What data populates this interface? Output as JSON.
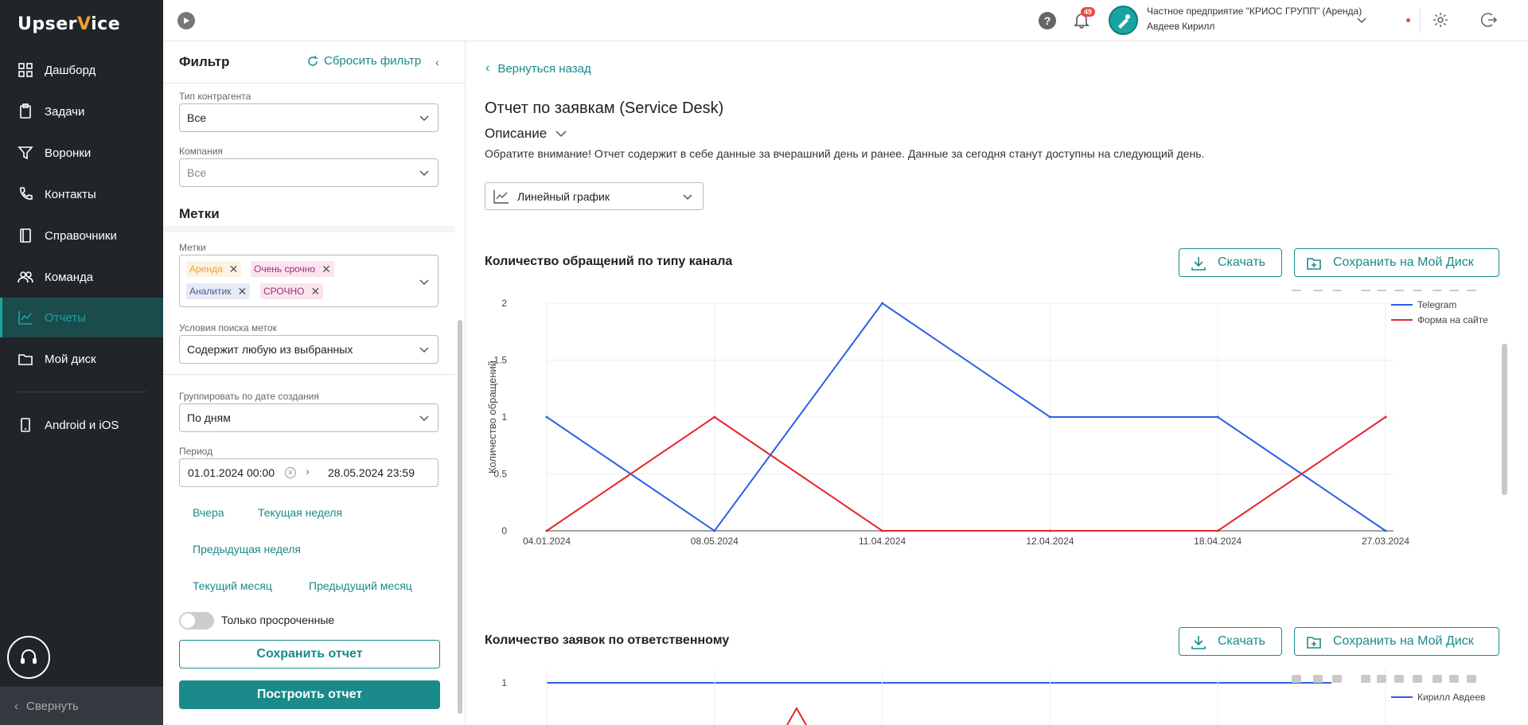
{
  "app": {
    "logo_left": "Upser",
    "logo_accent": "V",
    "logo_right": "ice"
  },
  "sidebar": {
    "items": [
      {
        "label": "Дашборд",
        "icon": "grid-icon"
      },
      {
        "label": "Задачи",
        "icon": "clipboard-icon"
      },
      {
        "label": "Воронки",
        "icon": "funnel-icon"
      },
      {
        "label": "Контакты",
        "icon": "phone-icon"
      },
      {
        "label": "Справочники",
        "icon": "book-icon"
      },
      {
        "label": "Команда",
        "icon": "team-icon"
      },
      {
        "label": "Отчеты",
        "icon": "chart-icon",
        "active": true
      },
      {
        "label": "Мой диск",
        "icon": "folder-icon"
      },
      {
        "label": "Android и iOS",
        "icon": "mobile-icon"
      }
    ],
    "collapse_label": "Свернуть"
  },
  "topbar": {
    "notifications_count": "49",
    "org_name": "Частное предприятие \"КРИОС ГРУПП\" (Аренда)",
    "user_name": "Авдеев Кирилл"
  },
  "filter": {
    "title": "Фильтр",
    "reset_label": "Сбросить фильтр",
    "contragent_type_label": "Тип контрагента",
    "contragent_type_value": "Все",
    "company_label": "Компания",
    "company_value": "Все",
    "tags_section_title": "Метки",
    "tags_label": "Метки",
    "tags": [
      {
        "label": "Аренда",
        "color": "#f0a030",
        "bg": "#fdf3e1"
      },
      {
        "label": "Очень срочно",
        "color": "#a0306a",
        "bg": "#fbe4ef"
      },
      {
        "label": "Аналитик",
        "color": "#4a5a8a",
        "bg": "#e6ebf6"
      },
      {
        "label": "СРОЧНО",
        "color": "#a0306a",
        "bg": "#fbe4ef"
      }
    ],
    "tag_search_label": "Условия поиска меток",
    "tag_search_value": "Содержит любую из выбранных",
    "group_label": "Группировать по дате создания",
    "group_value": "По дням",
    "period_label": "Период",
    "period_from": "01.01.2024 00:00",
    "period_to": "28.05.2024 23:59",
    "quick": {
      "yesterday": "Вчера",
      "this_week": "Текущая неделя",
      "prev_week": "Предыдущая неделя",
      "this_month": "Текущий месяц",
      "prev_month": "Предыдущий месяц"
    },
    "overdue_only_label": "Только просроченные",
    "save_report_label": "Сохранить отчет",
    "build_report_label": "Построить отчет"
  },
  "main": {
    "back_label": "Вернуться назад",
    "title": "Отчет по заявкам (Service Desk)",
    "description_toggle": "Описание",
    "description_text": "Обратите внимание! Отчет содержит в себе данные за вчерашний день и ранее. Данные за сегодня станут доступны на следующий день.",
    "chart_type_value": "Линейный график",
    "download_label": "Скачать",
    "save_disk_label": "Сохранить на Мой Диск"
  },
  "chart_data": [
    {
      "type": "line",
      "title": "Количество обращений по типу канала",
      "xlabel": "",
      "ylabel": "Количество обращений",
      "x": [
        "04.01.2024",
        "08.05.2024",
        "11.04.2024",
        "12.04.2024",
        "18.04.2024",
        "27.03.2024"
      ],
      "ylim": [
        0,
        2
      ],
      "yticks": [
        "0",
        "0.5",
        "1",
        "1.5",
        "2"
      ],
      "grid": true,
      "legend": "top-right",
      "series": [
        {
          "name": "Telegram",
          "color": "#2e5fe8",
          "values": [
            1,
            0,
            2,
            1,
            1,
            0
          ]
        },
        {
          "name": "Форма на сайте",
          "color": "#e3262e",
          "values": [
            0,
            1,
            0,
            0,
            0,
            1
          ]
        }
      ]
    },
    {
      "type": "line",
      "title": "Количество заявок по ответственному",
      "xlabel": "",
      "ylabel": "",
      "yticks": [
        "1"
      ],
      "legend": "top-right",
      "series": [
        {
          "name": "Кирилл Авдеев",
          "color": "#2e5fe8"
        }
      ]
    }
  ]
}
